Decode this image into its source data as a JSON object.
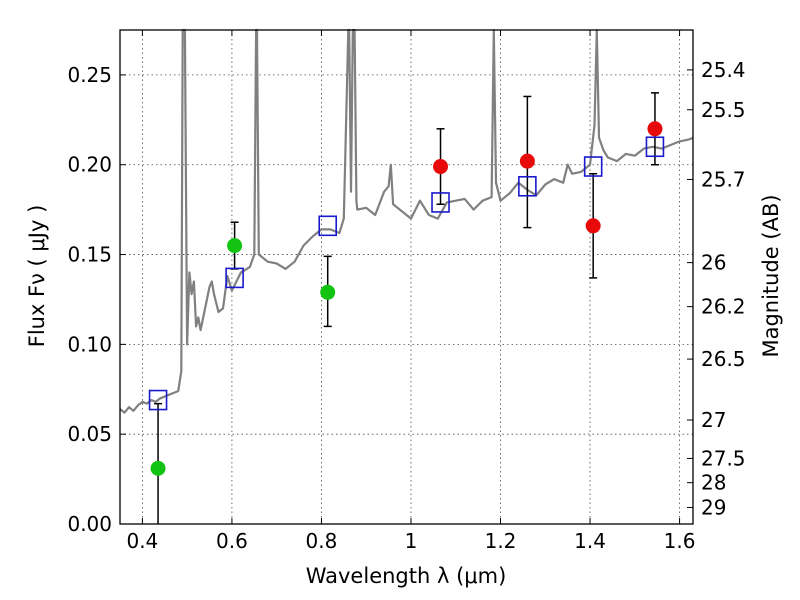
{
  "chart_data": {
    "type": "scatter",
    "title": "",
    "xlabel": "Wavelength  λ (μm)",
    "ylabel": "Flux  Fν  ( μJy )",
    "y2label": "Magnitude (AB)",
    "xlim": [
      0.35,
      1.63
    ],
    "ylim": [
      0.0,
      0.275
    ],
    "grid": true,
    "xticks": [
      0.4,
      0.6,
      0.8,
      1.0,
      1.2,
      1.4,
      1.6
    ],
    "xtick_labels": [
      "0.4",
      "0.6",
      "0.8",
      "1",
      "1.2",
      "1.4",
      "1.6"
    ],
    "yticks": [
      0.0,
      0.05,
      0.1,
      0.15,
      0.2,
      0.25
    ],
    "ytick_labels": [
      "0.00",
      "0.05",
      "0.10",
      "0.15",
      "0.20",
      "0.25"
    ],
    "y2ticks": [
      {
        "label": "25.4",
        "flux": 0.2528
      },
      {
        "label": "25.5",
        "flux": 0.2306
      },
      {
        "label": "25.7",
        "flux": 0.1918
      },
      {
        "label": "26",
        "flux": 0.1455
      },
      {
        "label": "26.2",
        "flux": 0.121
      },
      {
        "label": "26.5",
        "flux": 0.0918
      },
      {
        "label": "27",
        "flux": 0.0579
      },
      {
        "label": "27.5",
        "flux": 0.0365
      },
      {
        "label": "28",
        "flux": 0.023
      },
      {
        "label": "29",
        "flux": 0.0092
      }
    ],
    "spectrum": {
      "color": "#808080",
      "x": [
        0.35,
        0.36,
        0.37,
        0.38,
        0.39,
        0.4,
        0.41,
        0.42,
        0.43,
        0.44,
        0.45,
        0.46,
        0.47,
        0.48,
        0.487,
        0.49,
        0.495,
        0.5,
        0.505,
        0.51,
        0.515,
        0.52,
        0.525,
        0.53,
        0.54,
        0.55,
        0.555,
        0.56,
        0.57,
        0.58,
        0.59,
        0.6,
        0.62,
        0.64,
        0.65,
        0.654,
        0.656,
        0.66,
        0.67,
        0.68,
        0.7,
        0.72,
        0.74,
        0.76,
        0.78,
        0.8,
        0.82,
        0.84,
        0.85,
        0.86,
        0.862,
        0.866,
        0.87,
        0.874,
        0.878,
        0.88,
        0.9,
        0.92,
        0.94,
        0.95,
        0.955,
        0.96,
        0.98,
        1.0,
        1.02,
        1.04,
        1.06,
        1.08,
        1.1,
        1.12,
        1.14,
        1.16,
        1.18,
        1.185,
        1.19,
        1.2,
        1.22,
        1.24,
        1.26,
        1.28,
        1.3,
        1.32,
        1.34,
        1.35,
        1.36,
        1.38,
        1.4,
        1.41,
        1.415,
        1.42,
        1.43,
        1.44,
        1.46,
        1.48,
        1.5,
        1.52,
        1.54,
        1.56,
        1.58,
        1.6,
        1.62,
        1.63
      ],
      "y": [
        0.064,
        0.062,
        0.065,
        0.063,
        0.066,
        0.068,
        0.067,
        0.069,
        0.068,
        0.07,
        0.071,
        0.072,
        0.073,
        0.074,
        0.085,
        0.275,
        0.275,
        0.1,
        0.14,
        0.128,
        0.135,
        0.11,
        0.115,
        0.108,
        0.12,
        0.132,
        0.135,
        0.128,
        0.118,
        0.12,
        0.138,
        0.13,
        0.14,
        0.143,
        0.15,
        0.275,
        0.275,
        0.15,
        0.148,
        0.146,
        0.145,
        0.142,
        0.146,
        0.155,
        0.16,
        0.164,
        0.164,
        0.162,
        0.17,
        0.275,
        0.275,
        0.185,
        0.275,
        0.275,
        0.18,
        0.175,
        0.176,
        0.172,
        0.185,
        0.188,
        0.2,
        0.178,
        0.174,
        0.17,
        0.18,
        0.172,
        0.17,
        0.179,
        0.18,
        0.181,
        0.175,
        0.18,
        0.182,
        0.275,
        0.19,
        0.18,
        0.184,
        0.19,
        0.186,
        0.183,
        0.189,
        0.192,
        0.19,
        0.2,
        0.195,
        0.196,
        0.2,
        0.222,
        0.275,
        0.215,
        0.208,
        0.204,
        0.202,
        0.206,
        0.205,
        0.209,
        0.21,
        0.209,
        0.211,
        0.213,
        0.214,
        0.215
      ]
    },
    "series": [
      {
        "marker": "circle",
        "color": "#12c312",
        "points": [
          {
            "x": 0.435,
            "y": 0.031,
            "yerr_low": 0.031,
            "yerr_high": 0.036
          },
          {
            "x": 0.606,
            "y": 0.155,
            "yerr_low": 0.013,
            "yerr_high": 0.013
          },
          {
            "x": 0.814,
            "y": 0.129,
            "yerr_low": 0.019,
            "yerr_high": 0.02
          }
        ]
      },
      {
        "marker": "circle",
        "color": "#e80a0a",
        "points": [
          {
            "x": 1.066,
            "y": 0.199,
            "yerr_low": 0.021,
            "yerr_high": 0.021
          },
          {
            "x": 1.26,
            "y": 0.202,
            "yerr_low": 0.037,
            "yerr_high": 0.036
          },
          {
            "x": 1.407,
            "y": 0.166,
            "yerr_low": 0.029,
            "yerr_high": 0.029
          },
          {
            "x": 1.545,
            "y": 0.22,
            "yerr_low": 0.02,
            "yerr_high": 0.02
          }
        ]
      },
      {
        "marker": "open-square",
        "color": "#1a1acc",
        "points": [
          {
            "x": 0.435,
            "y": 0.069
          },
          {
            "x": 0.606,
            "y": 0.137
          },
          {
            "x": 0.814,
            "y": 0.166
          },
          {
            "x": 1.066,
            "y": 0.179
          },
          {
            "x": 1.26,
            "y": 0.188
          },
          {
            "x": 1.407,
            "y": 0.199
          },
          {
            "x": 1.545,
            "y": 0.21
          }
        ]
      }
    ]
  }
}
